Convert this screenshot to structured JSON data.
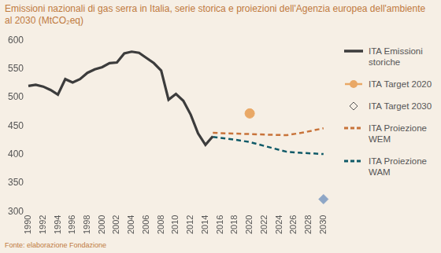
{
  "chart_data": {
    "type": "line",
    "title": "Emissioni nazionali di gas serra in Italia, serie storica e proiezioni dell'Agenzia europea dell'ambiente al 2030 (MtCO₂eq)",
    "source": "Fonte: elaborazione Fondazione",
    "xlim": [
      1990,
      2030
    ],
    "xticks": [
      1990,
      1992,
      1994,
      1996,
      1998,
      2000,
      2002,
      2004,
      2006,
      2008,
      2010,
      2012,
      2014,
      2016,
      2018,
      2020,
      2022,
      2024,
      2026,
      2028,
      2030
    ],
    "ylim": [
      300,
      600
    ],
    "yticks": [
      300,
      350,
      400,
      450,
      500,
      550,
      600
    ],
    "grid": false,
    "legend": "right",
    "series": [
      {
        "name": "ITA Emissioni storiche",
        "type": "line",
        "line_style": "solid",
        "color": "#3c3c3c",
        "x": [
          1990,
          1991,
          1992,
          1993,
          1994,
          1995,
          1996,
          1997,
          1998,
          1999,
          2000,
          2001,
          2002,
          2003,
          2004,
          2005,
          2006,
          2007,
          2008,
          2009,
          2010,
          2011,
          2012,
          2013,
          2014,
          2015
        ],
        "values": [
          520,
          522,
          519,
          513,
          505,
          532,
          526,
          532,
          543,
          549,
          553,
          560,
          561,
          577,
          580,
          578,
          569,
          560,
          547,
          496,
          506,
          494,
          470,
          437,
          417,
          432
        ]
      },
      {
        "name": "ITA Target 2020",
        "type": "scatter",
        "marker": "circle",
        "color": "#e9a866",
        "x": [
          2020
        ],
        "values": [
          472
        ]
      },
      {
        "name": "ITA Target 2030",
        "type": "scatter",
        "marker": "diamond",
        "color": "#8ea6c6",
        "x": [
          2030
        ],
        "values": [
          322
        ]
      },
      {
        "name": "ITA Proiezione WEM",
        "type": "line",
        "line_style": "dashed",
        "color": "#c8733a",
        "x": [
          2015,
          2017,
          2020,
          2022,
          2025,
          2027,
          2030
        ],
        "values": [
          438,
          437,
          436,
          435,
          434,
          438,
          446
        ]
      },
      {
        "name": "ITA Proiezione WAM",
        "type": "line",
        "line_style": "dashed",
        "color": "#0f5a68",
        "x": [
          2015,
          2018,
          2020,
          2022,
          2025,
          2027,
          2030
        ],
        "values": [
          431,
          426,
          422,
          415,
          405,
          403,
          401
        ]
      }
    ]
  }
}
